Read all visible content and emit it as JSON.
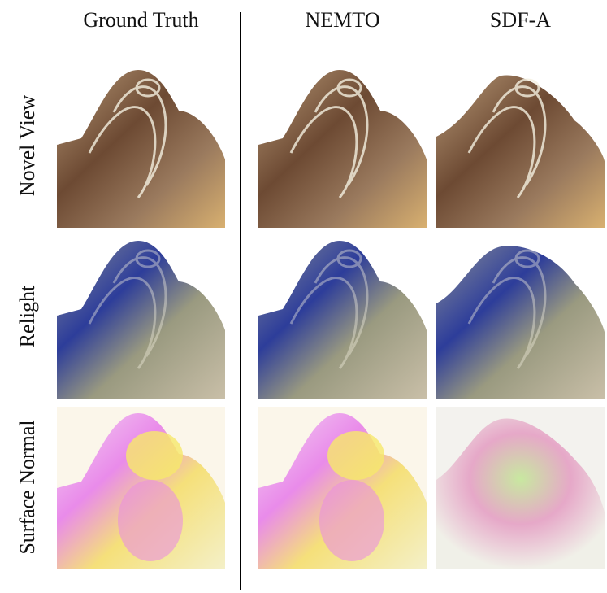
{
  "figure": {
    "column_headers": [
      "Ground Truth",
      "NEMTO",
      "SDF-A"
    ],
    "row_labels": [
      "Novel View",
      "Relight",
      "Surface Normal"
    ]
  }
}
